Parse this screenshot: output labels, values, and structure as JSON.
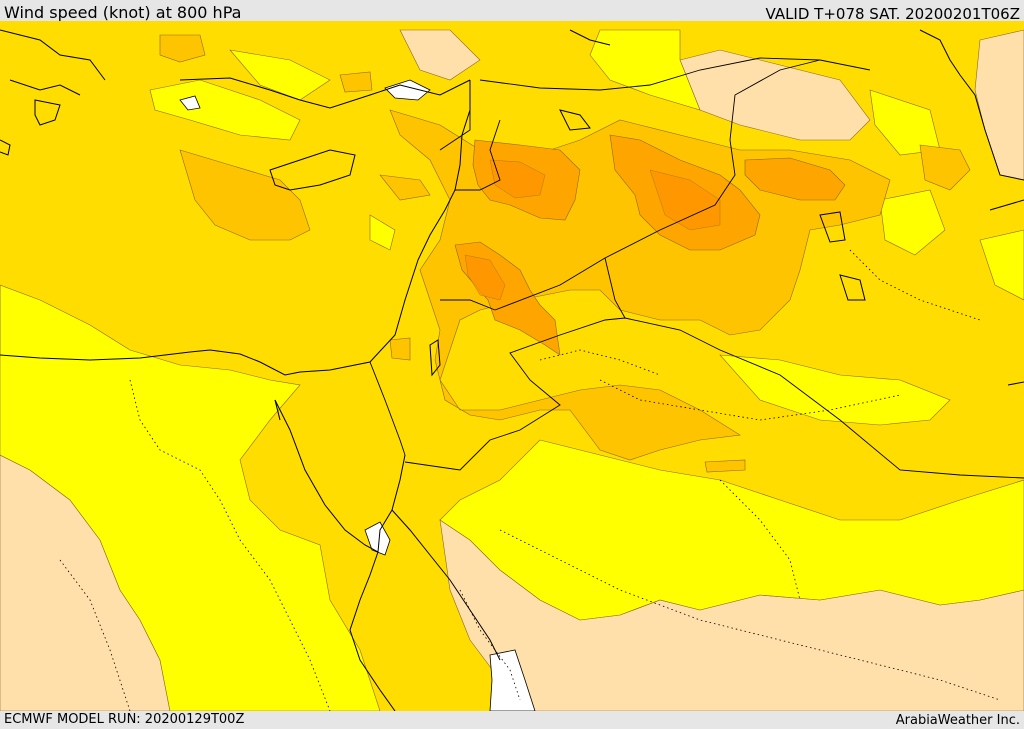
{
  "header": {
    "title": "Wind speed (knot) at 800 hPa",
    "valid": "VALID T+078 SAT. 20200201T06Z"
  },
  "footer": {
    "model_run": "ECMWF MODEL RUN: 20200129T00Z",
    "credit": "ArabiaWeather Inc."
  },
  "colors": {
    "band_lowest": "#ffdfaa",
    "band_low": "#ffff00",
    "band_mid": "#ffdd00",
    "band_high": "#ffc400",
    "band_higher": "#ffa500",
    "band_highest": "#ff9500",
    "coastline": "#000000",
    "border": "#000000",
    "contour": "#8a6a2a",
    "header_bg": "#e6e6e6"
  }
}
